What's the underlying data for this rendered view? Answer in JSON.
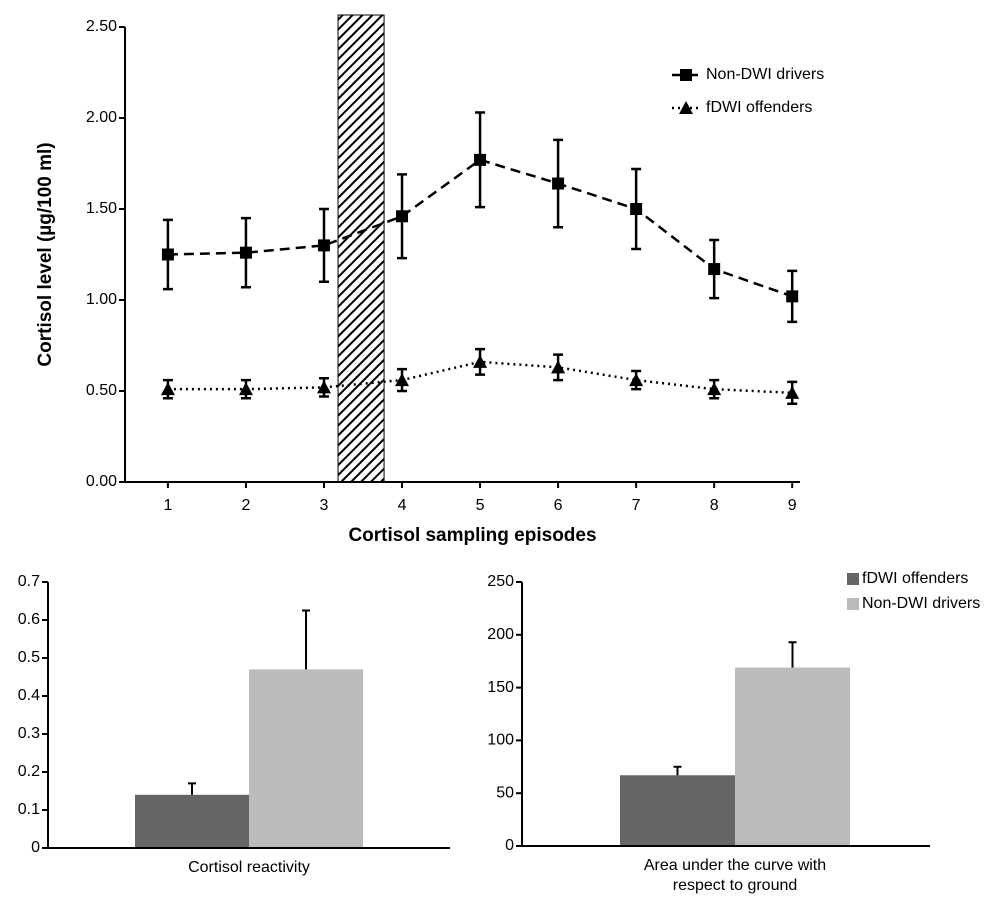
{
  "chart_data": [
    {
      "type": "line",
      "y_label": "Cortisol level (µg/100 ml)",
      "x_label": "Cortisol sampling episodes",
      "x": [
        1,
        2,
        3,
        4,
        5,
        6,
        7,
        8,
        9
      ],
      "xlim": [
        0.45,
        9.1
      ],
      "xticks": [
        1,
        2,
        3,
        4,
        5,
        6,
        7,
        8,
        9
      ],
      "ylim": [
        0,
        2.5
      ],
      "yticks": [
        {
          "value": 0,
          "label": "0.00"
        },
        {
          "value": 0.5,
          "label": "0.50"
        },
        {
          "value": 1,
          "label": "1.00"
        },
        {
          "value": 1.5,
          "label": "1.50"
        },
        {
          "value": 2,
          "label": "2.00"
        },
        {
          "value": 2.5,
          "label": "2.50"
        }
      ],
      "shaded_span": [
        3.18,
        3.77
      ],
      "legend": "upper right",
      "series": [
        {
          "name": "Non-DWI drivers",
          "color": "#000000",
          "linestyle": "dashed",
          "marker": "square",
          "values": [
            1.25,
            1.26,
            1.3,
            1.46,
            1.77,
            1.64,
            1.5,
            1.17,
            1.02
          ],
          "errors": [
            0.19,
            0.19,
            0.2,
            0.23,
            0.26,
            0.24,
            0.22,
            0.16,
            0.14
          ]
        },
        {
          "name": "fDWI offenders",
          "color": "#000000",
          "linestyle": "dotted",
          "marker": "triangle",
          "values": [
            0.51,
            0.51,
            0.52,
            0.56,
            0.66,
            0.63,
            0.56,
            0.51,
            0.49
          ],
          "errors": [
            0.05,
            0.05,
            0.05,
            0.06,
            0.07,
            0.07,
            0.05,
            0.05,
            0.06
          ]
        }
      ]
    },
    {
      "type": "bar",
      "categories": [
        "Cortisol reactivity"
      ],
      "ylim": [
        0,
        0.7
      ],
      "yticks": [
        0,
        0.1,
        0.2,
        0.3,
        0.4,
        0.5,
        0.6,
        0.7
      ],
      "series": [
        {
          "color": "#666666",
          "values": [
            0.14
          ],
          "errors": [
            0.03
          ]
        },
        {
          "color": "#bbbbbb",
          "values": [
            0.47
          ],
          "errors": [
            0.155
          ]
        }
      ]
    },
    {
      "type": "bar",
      "categories": [
        "Area under the curve with respect to ground"
      ],
      "ylim": [
        0,
        250
      ],
      "yticks": [
        0,
        50,
        100,
        150,
        200,
        250
      ],
      "legend": "upper right",
      "series": [
        {
          "name": "fDWI offenders",
          "color": "#666666",
          "values": [
            67
          ],
          "errors": [
            8
          ]
        },
        {
          "name": "Non-DWI drivers",
          "color": "#bbbbbb",
          "values": [
            169
          ],
          "errors": [
            24
          ]
        }
      ]
    }
  ]
}
